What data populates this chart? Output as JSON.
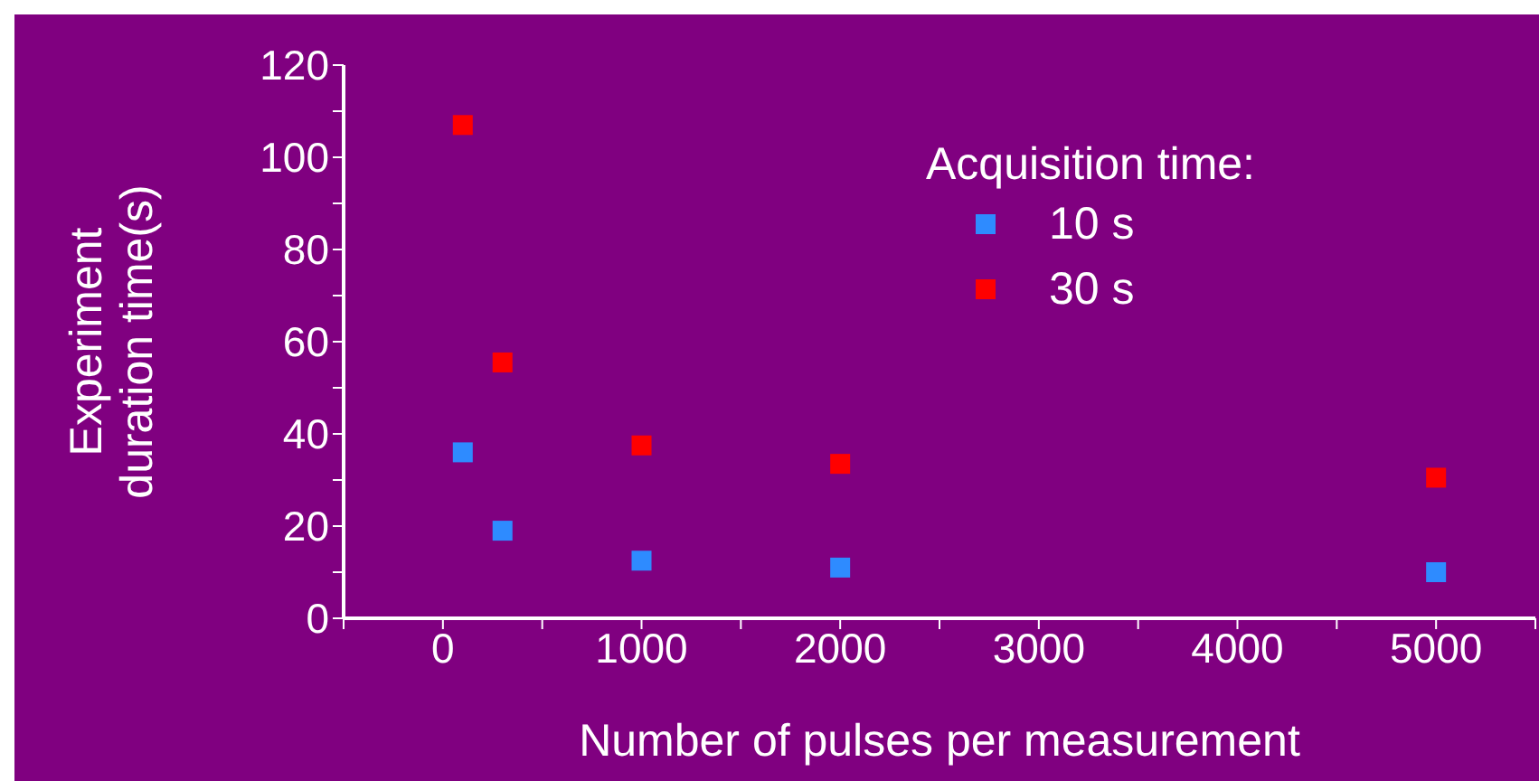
{
  "chart_data": {
    "type": "scatter",
    "xlabel": "Number of pulses per measurement",
    "ylabel": "Experiment\nduration time(s)",
    "legend_title": "Acquisition time:",
    "legend": "top right",
    "marker": "square",
    "x": [
      100,
      300,
      1000,
      2000,
      5000
    ],
    "series": [
      {
        "name": "10 s",
        "color": "#2e8bff",
        "values": [
          36,
          19,
          12.5,
          11,
          10
        ]
      },
      {
        "name": "30 s",
        "color": "#ff0000",
        "values": [
          107,
          55.5,
          37.5,
          33.5,
          30.5
        ]
      }
    ],
    "xlim": [
      -500,
      5500
    ],
    "xticks": [
      {
        "value": -500,
        "label": null
      },
      0,
      {
        "value": 500,
        "label": null
      },
      1000,
      {
        "value": 1500,
        "label": null
      },
      2000,
      {
        "value": 2500,
        "label": null
      },
      3000,
      {
        "value": 3500,
        "label": null
      },
      4000,
      {
        "value": 4500,
        "label": null
      },
      5000,
      {
        "value": 5500,
        "label": null
      }
    ],
    "ylim": [
      0,
      120
    ],
    "yticks": [
      0,
      {
        "value": 10,
        "label": null
      },
      20,
      {
        "value": 30,
        "label": null
      },
      40,
      {
        "value": 50,
        "label": null
      },
      60,
      {
        "value": 70,
        "label": null
      },
      80,
      {
        "value": 90,
        "label": null
      },
      100,
      {
        "value": 110,
        "label": null
      },
      120
    ]
  }
}
